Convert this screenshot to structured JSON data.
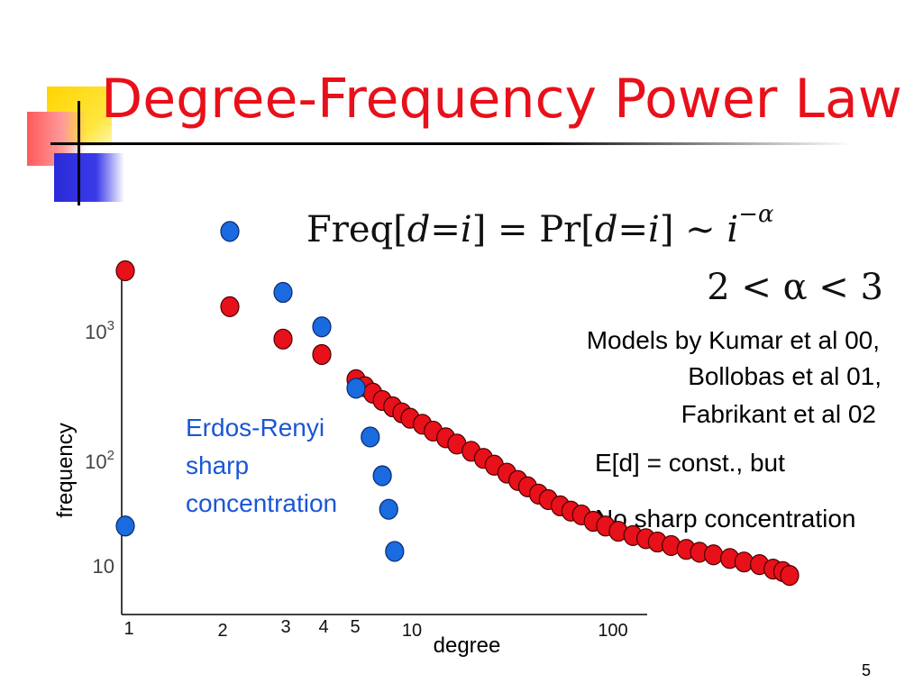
{
  "slide": {
    "title": "Degree-Frequency Power Law",
    "formula": {
      "freq": "Freq",
      "pr": "Pr",
      "d": "d",
      "i": "i",
      "exponent": "−α",
      "constraint": "2 < α < 3"
    },
    "models": [
      "Models by Kumar et al 00,",
      "Bollobas et al 01,",
      "Fabrikant et al 02"
    ],
    "ed_line": "E[d] = const., but",
    "no_sharp_line": "No sharp concentration",
    "er_label": [
      "Erdos-Renyi",
      "sharp",
      "concentration"
    ],
    "slide_number": "5",
    "colors": {
      "title": "#e8101a",
      "red_points": "#e8101a",
      "blue_points": "#1a6ae0",
      "er_label": "#1a56d6"
    }
  },
  "chart_data": {
    "type": "scatter",
    "xlabel": "degree",
    "ylabel": "frequency",
    "x_tick_labels": [
      "1",
      "2",
      "3",
      "4",
      "5",
      "10",
      "100"
    ],
    "y_tick_labels": [
      {
        "base": "10",
        "exp": "3"
      },
      {
        "base": "10",
        "exp": "2"
      },
      {
        "base": "10",
        "exp": ""
      }
    ],
    "x_scale": "log",
    "y_scale": "log",
    "series": [
      {
        "color": "#e8101a",
        "points": [
          [
            1,
            3400
          ],
          [
            2,
            1650
          ],
          [
            3,
            860
          ],
          [
            4,
            630
          ],
          [
            5,
            380
          ],
          [
            5.6,
            330
          ],
          [
            6.2,
            290
          ],
          [
            7,
            250
          ],
          [
            8,
            220
          ],
          [
            9,
            195
          ],
          [
            10,
            175
          ],
          [
            11.5,
            155
          ],
          [
            13,
            135
          ],
          [
            15,
            118
          ],
          [
            17,
            104
          ],
          [
            20,
            90
          ],
          [
            23,
            78
          ],
          [
            26,
            68
          ],
          [
            30,
            58
          ],
          [
            34,
            50
          ],
          [
            38,
            44
          ],
          [
            43,
            38
          ],
          [
            48,
            34
          ],
          [
            55,
            30
          ],
          [
            62,
            27
          ],
          [
            70,
            25
          ],
          [
            80,
            22
          ],
          [
            92,
            20
          ],
          [
            105,
            18
          ],
          [
            120,
            16.5
          ],
          [
            135,
            15.5
          ],
          [
            150,
            14.5
          ],
          [
            170,
            13.5
          ],
          [
            195,
            12.5
          ],
          [
            220,
            11.8
          ],
          [
            250,
            11.2
          ],
          [
            290,
            10.4
          ],
          [
            330,
            9.7
          ],
          [
            380,
            9.2
          ],
          [
            430,
            8.4
          ],
          [
            470,
            8.0
          ],
          [
            500,
            7.4
          ]
        ]
      },
      {
        "color": "#1a6ae0",
        "points": [
          [
            1,
            20
          ],
          [
            2,
            7500
          ],
          [
            3,
            2200
          ],
          [
            4,
            1100
          ],
          [
            5,
            320
          ],
          [
            6,
            120
          ],
          [
            7,
            55
          ],
          [
            7.6,
            28
          ],
          [
            8.2,
            12
          ]
        ]
      }
    ]
  }
}
